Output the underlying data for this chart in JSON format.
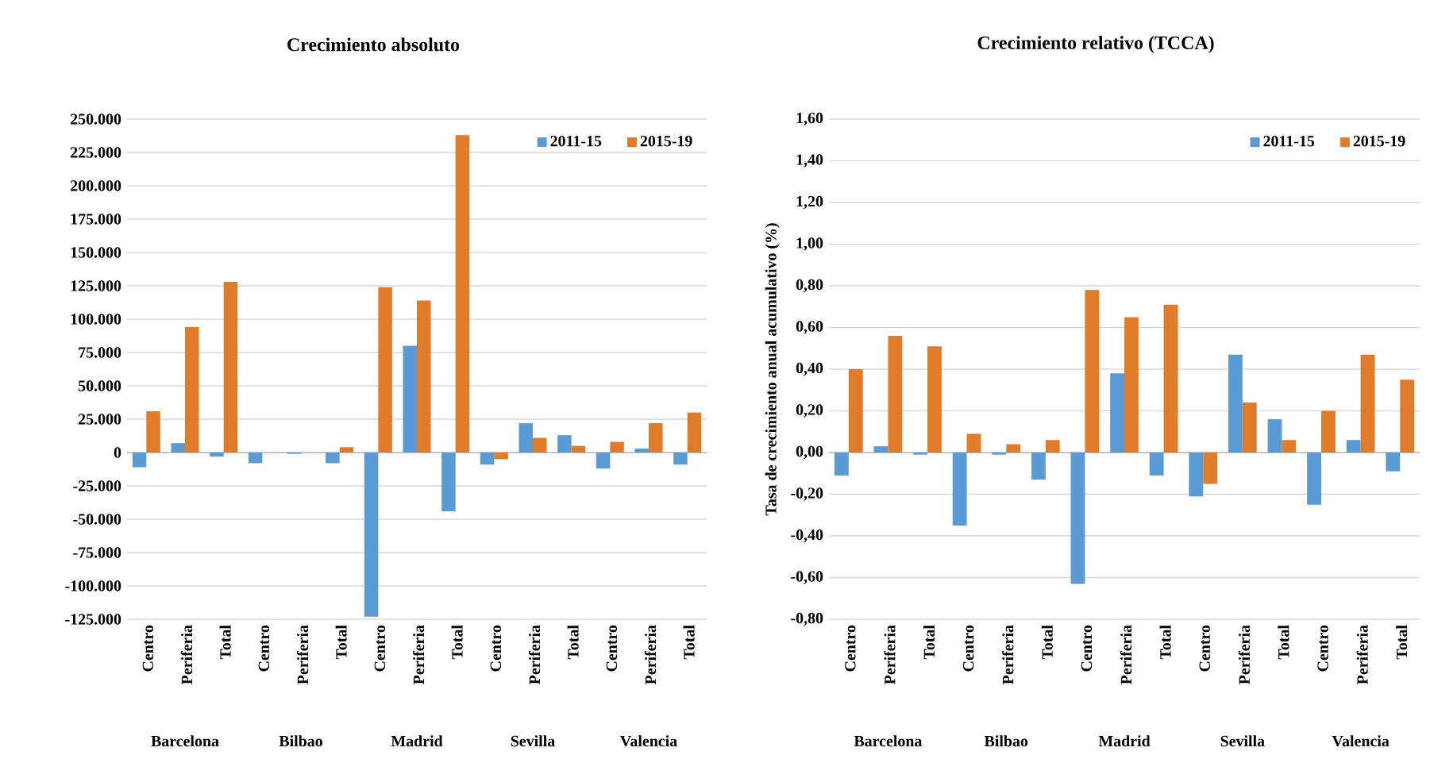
{
  "chart_data": [
    {
      "type": "bar",
      "title": "Crecimiento absoluto",
      "categories": [
        "Centro",
        "Periferia",
        "Total",
        "Centro",
        "Periferia",
        "Total",
        "Centro",
        "Periferia",
        "Total",
        "Centro",
        "Periferia",
        "Total",
        "Centro",
        "Periferia",
        "Total"
      ],
      "series": [
        {
          "name": "2011-15",
          "color": "#5b9bd5",
          "values": [
            -11000,
            7000,
            -3000,
            -8000,
            -1000,
            -8000,
            -123000,
            80000,
            -44000,
            -9000,
            22000,
            13000,
            -12000,
            3000,
            -9000
          ]
        },
        {
          "name": "2015-19",
          "color": "#e07b2a",
          "values": [
            31000,
            94000,
            128000,
            0,
            0,
            4000,
            124000,
            114000,
            238000,
            -5000,
            11000,
            5000,
            8000,
            22000,
            30000
          ]
        }
      ],
      "ylim": [
        -125000,
        250000
      ],
      "yticks": [
        {
          "value": -125000,
          "label": "-125.000"
        },
        {
          "value": -100000,
          "label": "-100.000"
        },
        {
          "value": -75000,
          "label": "-75.000"
        },
        {
          "value": -50000,
          "label": "-50.000"
        },
        {
          "value": -25000,
          "label": "-25.000"
        },
        0,
        {
          "value": 25000,
          "label": "25.000"
        },
        {
          "value": 50000,
          "label": "50.000"
        },
        {
          "value": 75000,
          "label": "75.000"
        },
        {
          "value": 100000,
          "label": "100.000"
        },
        {
          "value": 125000,
          "label": "125.000"
        },
        {
          "value": 150000,
          "label": "150.000"
        },
        {
          "value": 175000,
          "label": "175.000"
        },
        {
          "value": 200000,
          "label": "200.000"
        },
        {
          "value": 225000,
          "label": "225.000"
        },
        {
          "value": 250000,
          "label": "250.000"
        }
      ],
      "grid": "y",
      "legend": "top right",
      "annotations": [
        "Barcelona",
        "Bilbao",
        "Madrid",
        "Sevilla",
        "Valencia"
      ]
    },
    {
      "type": "bar",
      "title": "Crecimiento relativo (TCCA)",
      "ylabel": "Tasa de crecimiento anual acumulativo (%)",
      "categories": [
        "Centro",
        "Periferia",
        "Total",
        "Centro",
        "Periferia",
        "Total",
        "Centro",
        "Periferia",
        "Total",
        "Centro",
        "Periferia",
        "Total",
        "Centro",
        "Periferia",
        "Total"
      ],
      "series": [
        {
          "name": "2011-15",
          "color": "#5b9bd5",
          "values": [
            -0.11,
            0.03,
            -0.01,
            -0.35,
            -0.01,
            -0.13,
            -0.63,
            0.38,
            -0.11,
            -0.21,
            0.47,
            0.16,
            -0.25,
            0.06,
            -0.09
          ]
        },
        {
          "name": "2015-19",
          "color": "#e07b2a",
          "values": [
            0.4,
            0.56,
            0.51,
            0.09,
            0.04,
            0.06,
            0.78,
            0.65,
            0.71,
            -0.15,
            0.24,
            0.06,
            0.2,
            0.47,
            0.35
          ]
        }
      ],
      "ylim": [
        -0.8,
        1.6
      ],
      "yticks": [
        {
          "value": -0.8,
          "label": "-0,80"
        },
        {
          "value": -0.6,
          "label": "-0,60"
        },
        {
          "value": -0.4,
          "label": "-0,40"
        },
        {
          "value": -0.2,
          "label": "-0,20"
        },
        {
          "value": 0,
          "label": "0,00"
        },
        {
          "value": 0.2,
          "label": "0,20"
        },
        {
          "value": 0.4,
          "label": "0,40"
        },
        {
          "value": 0.6,
          "label": "0,60"
        },
        {
          "value": 0.8,
          "label": "0,80"
        },
        {
          "value": 1.0,
          "label": "1,00"
        },
        {
          "value": 1.2,
          "label": "1,20"
        },
        {
          "value": 1.4,
          "label": "1,40"
        },
        {
          "value": 1.6,
          "label": "1,60"
        }
      ],
      "grid": "y",
      "legend": "top right",
      "annotations": [
        "Barcelona",
        "Bilbao",
        "Madrid",
        "Sevilla",
        "Valencia"
      ]
    }
  ]
}
